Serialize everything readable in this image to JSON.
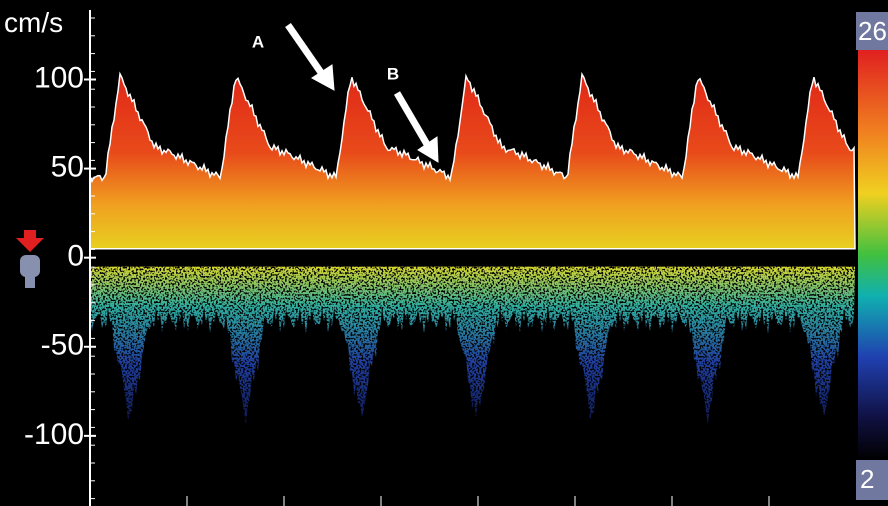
{
  "axis": {
    "unit": "cm/s",
    "ylim": [
      -136,
      139
    ],
    "ticks": [
      100,
      50,
      0,
      -50,
      -100
    ]
  },
  "annotations": [
    "A",
    "B"
  ],
  "color_bar": {
    "top": "26",
    "bottom": "2"
  }
}
